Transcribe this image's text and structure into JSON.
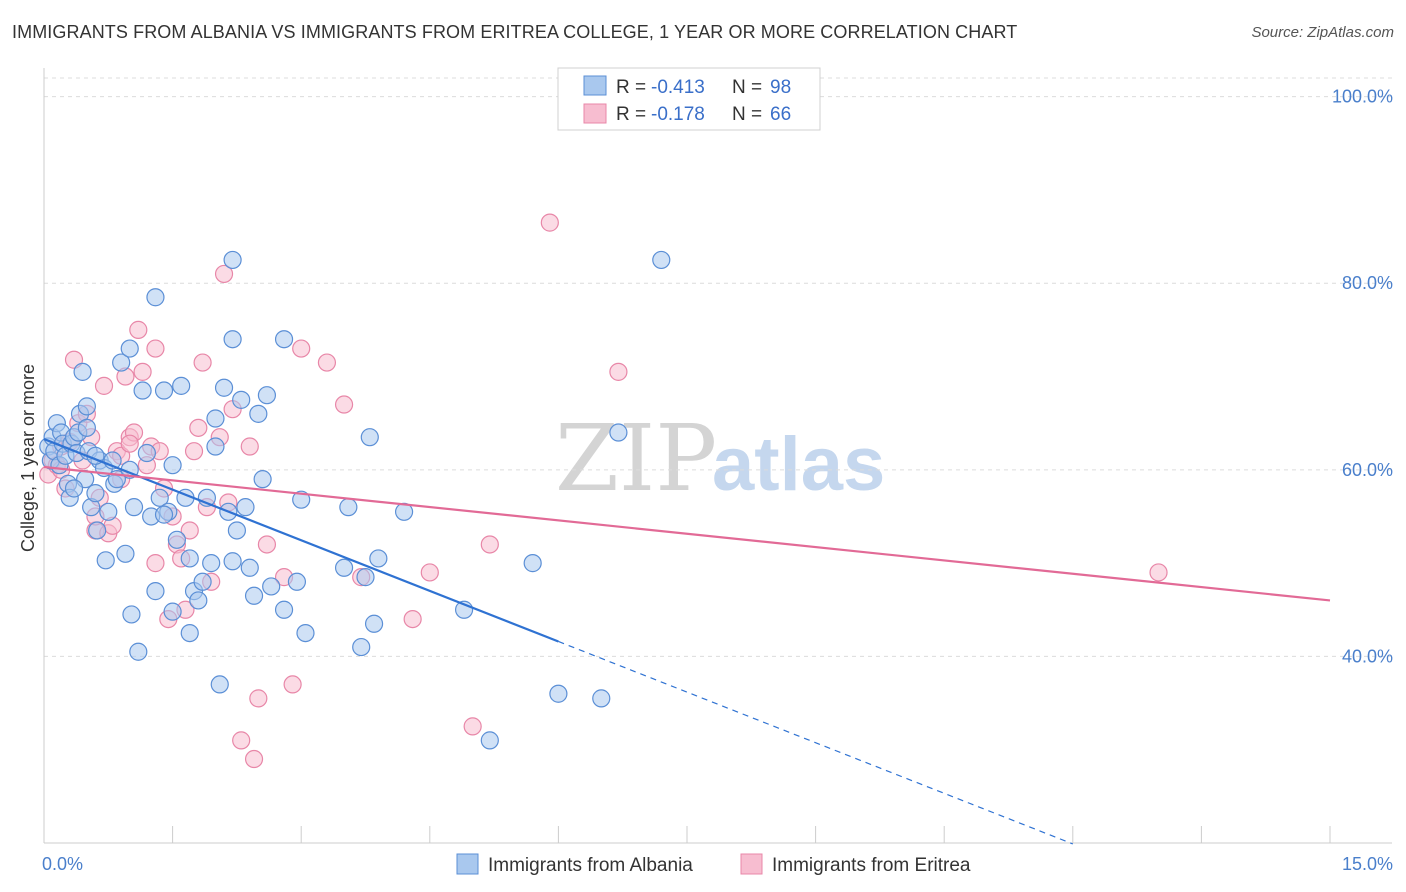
{
  "header": {
    "title": "IMMIGRANTS FROM ALBANIA VS IMMIGRANTS FROM ERITREA COLLEGE, 1 YEAR OR MORE CORRELATION CHART",
    "source": "Source: ZipAtlas.com"
  },
  "colors": {
    "albania_fill": "#a9c8ee",
    "albania_stroke": "#5b8fd6",
    "albania_line": "#2f72d2",
    "eritrea_fill": "#f7bdd0",
    "eritrea_stroke": "#e887a8",
    "eritrea_line": "#e26a96",
    "tick_text": "#4a7fcb",
    "grid": "#dcdcdc"
  },
  "watermark": {
    "part1": "ZIP",
    "part2": "atlas"
  },
  "legend": {
    "rows": [
      {
        "r_label": "R =",
        "r_value": "-0.413",
        "n_label": "N =",
        "n_value": "98"
      },
      {
        "r_label": "R =",
        "r_value": "-0.178",
        "n_label": "N =",
        "n_value": "66"
      }
    ]
  },
  "chart_data": {
    "type": "scatter",
    "title": "IMMIGRANTS FROM ALBANIA VS IMMIGRANTS FROM ERITREA COLLEGE, 1 YEAR OR MORE CORRELATION CHART",
    "xlabel": "",
    "ylabel": "College, 1 year or more",
    "xlim": [
      0,
      15
    ],
    "ylim": [
      20,
      102
    ],
    "x_tick_labels": [
      "0.0%",
      "15.0%"
    ],
    "y_ticks": [
      40,
      60,
      80,
      100
    ],
    "y_tick_labels": [
      "40.0%",
      "60.0%",
      "80.0%",
      "100.0%"
    ],
    "grid": true,
    "legend_position": "top-center",
    "series": [
      {
        "name": "Immigrants from Albania",
        "r": -0.413,
        "n": 98,
        "trend": {
          "x0": 0.0,
          "y0": 63.3,
          "x1": 6.0,
          "y1": 41.6,
          "dash_to_x": 12.0,
          "dash_to_y": 19.9
        },
        "points": [
          [
            0.05,
            62.5
          ],
          [
            0.08,
            61.0
          ],
          [
            0.1,
            63.5
          ],
          [
            0.12,
            62.0
          ],
          [
            0.15,
            65.0
          ],
          [
            0.18,
            60.5
          ],
          [
            0.2,
            64.0
          ],
          [
            0.22,
            62.8
          ],
          [
            0.25,
            61.5
          ],
          [
            0.28,
            58.5
          ],
          [
            0.3,
            57.0
          ],
          [
            0.32,
            62.8
          ],
          [
            0.35,
            63.5
          ],
          [
            0.38,
            61.8
          ],
          [
            0.4,
            64.0
          ],
          [
            0.42,
            66.0
          ],
          [
            0.45,
            70.5
          ],
          [
            0.48,
            59.0
          ],
          [
            0.5,
            66.8
          ],
          [
            0.52,
            62.0
          ],
          [
            0.55,
            56.0
          ],
          [
            0.6,
            57.5
          ],
          [
            0.62,
            53.5
          ],
          [
            0.65,
            61.0
          ],
          [
            0.7,
            60.2
          ],
          [
            0.72,
            50.3
          ],
          [
            0.75,
            55.5
          ],
          [
            0.8,
            61.0
          ],
          [
            0.82,
            58.5
          ],
          [
            0.85,
            59.0
          ],
          [
            0.9,
            71.5
          ],
          [
            0.95,
            51.0
          ],
          [
            1.0,
            73.0
          ],
          [
            1.02,
            44.5
          ],
          [
            1.05,
            56.0
          ],
          [
            1.1,
            40.5
          ],
          [
            1.15,
            68.5
          ],
          [
            1.2,
            61.8
          ],
          [
            1.25,
            55.0
          ],
          [
            1.3,
            78.5
          ],
          [
            1.35,
            57.0
          ],
          [
            1.4,
            68.5
          ],
          [
            1.45,
            55.5
          ],
          [
            1.5,
            60.5
          ],
          [
            1.5,
            44.8
          ],
          [
            1.55,
            52.5
          ],
          [
            1.6,
            69.0
          ],
          [
            1.65,
            57.0
          ],
          [
            1.7,
            50.5
          ],
          [
            1.7,
            42.5
          ],
          [
            1.75,
            47.0
          ],
          [
            1.8,
            46.0
          ],
          [
            1.85,
            48.0
          ],
          [
            1.9,
            57.0
          ],
          [
            1.95,
            50.0
          ],
          [
            2.0,
            65.5
          ],
          [
            2.0,
            62.5
          ],
          [
            2.05,
            37.0
          ],
          [
            2.1,
            68.8
          ],
          [
            2.15,
            55.5
          ],
          [
            2.2,
            74.0
          ],
          [
            2.25,
            53.5
          ],
          [
            2.3,
            67.5
          ],
          [
            2.35,
            56.0
          ],
          [
            2.4,
            49.5
          ],
          [
            2.45,
            46.5
          ],
          [
            2.5,
            66.0
          ],
          [
            2.55,
            59.0
          ],
          [
            2.6,
            68.0
          ],
          [
            2.65,
            47.5
          ],
          [
            2.8,
            74.0
          ],
          [
            2.8,
            45.0
          ],
          [
            2.95,
            48.0
          ],
          [
            3.0,
            56.8
          ],
          [
            3.05,
            42.5
          ],
          [
            3.5,
            49.5
          ],
          [
            3.55,
            56.0
          ],
          [
            3.7,
            41.0
          ],
          [
            3.75,
            48.5
          ],
          [
            3.8,
            63.5
          ],
          [
            3.85,
            43.5
          ],
          [
            3.9,
            50.5
          ],
          [
            4.2,
            55.5
          ],
          [
            4.9,
            45.0
          ],
          [
            5.2,
            31.0
          ],
          [
            5.7,
            50.0
          ],
          [
            6.0,
            36.0
          ],
          [
            6.5,
            35.5
          ],
          [
            6.7,
            64.0
          ],
          [
            7.2,
            82.5
          ],
          [
            2.2,
            82.5
          ],
          [
            1.3,
            47.0
          ],
          [
            0.35,
            58.0
          ],
          [
            0.5,
            64.5
          ],
          [
            0.6,
            61.5
          ],
          [
            1.0,
            60.0
          ],
          [
            1.4,
            55.2
          ],
          [
            2.2,
            50.2
          ]
        ]
      },
      {
        "name": "Immigrants from Eritrea",
        "r": -0.178,
        "n": 66,
        "trend": {
          "x0": 0.0,
          "y0": 60.3,
          "x1": 15.0,
          "y1": 46.0
        },
        "points": [
          [
            0.05,
            59.5
          ],
          [
            0.1,
            61.0
          ],
          [
            0.15,
            60.5
          ],
          [
            0.2,
            62.5
          ],
          [
            0.25,
            58.0
          ],
          [
            0.3,
            63.0
          ],
          [
            0.35,
            71.8
          ],
          [
            0.4,
            65.0
          ],
          [
            0.45,
            61.0
          ],
          [
            0.5,
            66.0
          ],
          [
            0.55,
            63.5
          ],
          [
            0.6,
            53.5
          ],
          [
            0.65,
            57.0
          ],
          [
            0.7,
            69.0
          ],
          [
            0.75,
            53.2
          ],
          [
            0.8,
            54.0
          ],
          [
            0.85,
            62.0
          ],
          [
            0.9,
            61.5
          ],
          [
            0.95,
            70.0
          ],
          [
            1.0,
            63.5
          ],
          [
            1.05,
            64.0
          ],
          [
            1.1,
            75.0
          ],
          [
            1.15,
            70.5
          ],
          [
            1.2,
            60.5
          ],
          [
            1.25,
            62.5
          ],
          [
            1.3,
            73.0
          ],
          [
            1.35,
            62.0
          ],
          [
            1.4,
            58.0
          ],
          [
            1.45,
            44.0
          ],
          [
            1.5,
            55.0
          ],
          [
            1.55,
            52.0
          ],
          [
            1.6,
            50.5
          ],
          [
            1.65,
            45.0
          ],
          [
            1.7,
            53.5
          ],
          [
            1.75,
            62.0
          ],
          [
            1.8,
            64.5
          ],
          [
            1.85,
            71.5
          ],
          [
            1.9,
            56.0
          ],
          [
            1.95,
            48.0
          ],
          [
            2.05,
            63.5
          ],
          [
            2.1,
            81.0
          ],
          [
            2.15,
            56.5
          ],
          [
            2.2,
            66.5
          ],
          [
            2.3,
            31.0
          ],
          [
            2.4,
            62.5
          ],
          [
            2.45,
            29.0
          ],
          [
            2.5,
            35.5
          ],
          [
            2.6,
            52.0
          ],
          [
            2.8,
            48.5
          ],
          [
            2.9,
            37.0
          ],
          [
            3.0,
            73.0
          ],
          [
            3.3,
            71.5
          ],
          [
            3.5,
            67.0
          ],
          [
            3.7,
            48.5
          ],
          [
            4.3,
            44.0
          ],
          [
            4.5,
            49.0
          ],
          [
            5.0,
            32.5
          ],
          [
            5.2,
            52.0
          ],
          [
            5.9,
            86.5
          ],
          [
            6.7,
            70.5
          ],
          [
            13.0,
            49.0
          ],
          [
            0.9,
            59.0
          ],
          [
            1.3,
            50.0
          ],
          [
            0.2,
            60.0
          ],
          [
            0.6,
            55.0
          ],
          [
            1.0,
            62.8
          ]
        ]
      }
    ]
  },
  "bottom_legend": {
    "items": [
      {
        "label": "Immigrants from Albania"
      },
      {
        "label": "Immigrants from Eritrea"
      }
    ]
  }
}
